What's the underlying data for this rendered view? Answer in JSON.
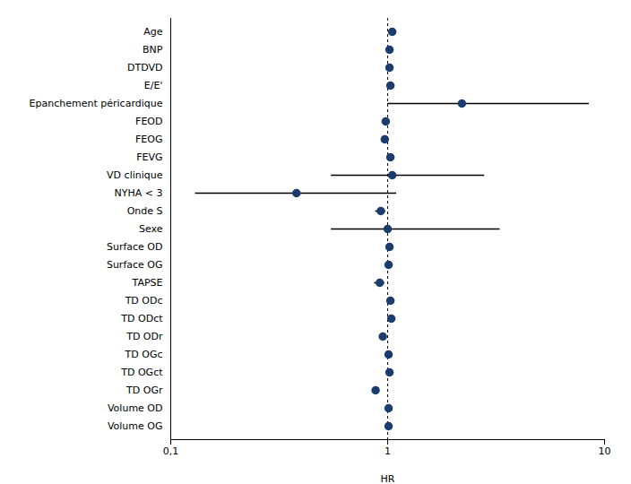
{
  "chart_data": {
    "type": "forest",
    "xlabel": "HR",
    "categories": [
      "Age",
      "BNP",
      "DTDVD",
      "E/E'",
      "Epanchement péricardique",
      "FEOD",
      "FEOG",
      "FEVG",
      "VD clinique",
      "NYHA < 3",
      "Onde S",
      "Sexe",
      "Surface OD",
      "Surface OG",
      "TAPSE",
      "TD ODc",
      "TD ODct",
      "TD ODr",
      "TD OGc",
      "TD OGct",
      "TD OGr",
      "Volume OD",
      "Volume OG"
    ],
    "values": [
      1.05,
      1.02,
      1.02,
      1.03,
      2.2,
      0.98,
      0.97,
      1.03,
      1.05,
      0.38,
      0.93,
      1.0,
      1.02,
      1.01,
      0.92,
      1.03,
      1.04,
      0.95,
      1.01,
      1.02,
      0.88,
      1.01,
      1.01
    ],
    "ci_low": [
      1.05,
      1.02,
      1.02,
      1.02,
      1.0,
      0.97,
      0.95,
      1.02,
      0.55,
      0.13,
      0.88,
      0.55,
      1.01,
      1.0,
      0.87,
      1.01,
      1.01,
      0.95,
      1.0,
      1.01,
      0.88,
      1.0,
      1.0
    ],
    "ci_high": [
      1.05,
      1.02,
      1.02,
      1.04,
      8.5,
      0.99,
      0.99,
      1.04,
      2.8,
      1.1,
      0.98,
      3.3,
      1.03,
      1.02,
      0.97,
      1.05,
      1.07,
      0.95,
      1.02,
      1.03,
      0.88,
      1.02,
      1.02
    ],
    "color": "#1b3d6e",
    "log": "x",
    "xlim": [
      0.1,
      10
    ],
    "xticks": [
      {
        "value": 0.1,
        "label": "0,1"
      },
      1,
      10
    ],
    "vline": 1,
    "grid": false
  }
}
